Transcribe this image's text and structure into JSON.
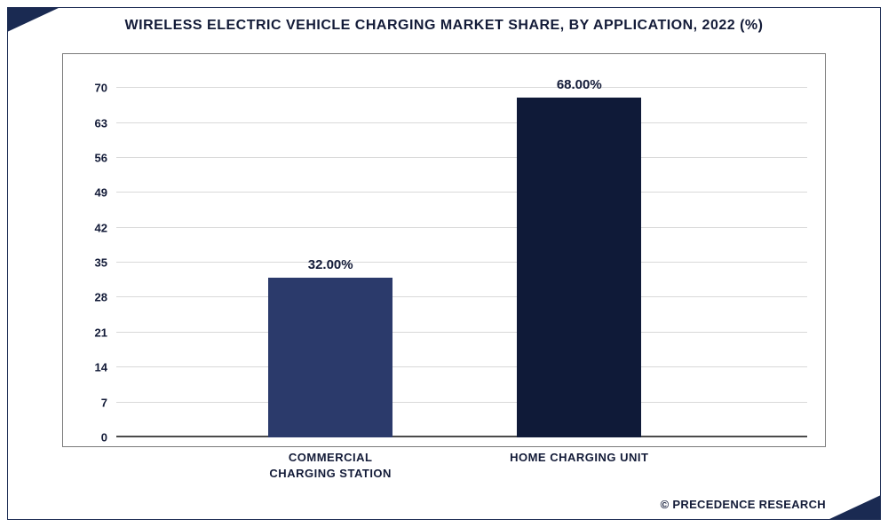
{
  "chart": {
    "type": "bar",
    "title": "WIRELESS ELECTRIC VEHICLE CHARGING MARKET SHARE, BY APPLICATION, 2022 (%)",
    "title_fontsize": 16,
    "title_color": "#131b38",
    "categories": [
      "COMMERCIAL\nCHARGING STATION",
      "HOME CHARGING UNIT"
    ],
    "values": [
      32.0,
      68.0
    ],
    "value_labels": [
      "32.00%",
      "68.00%"
    ],
    "bar_colors": [
      "#2b3a6b",
      "#0f1a38"
    ],
    "bar_width_pct": 18,
    "bar_positions_pct": [
      22,
      58
    ],
    "ylim": [
      0,
      75
    ],
    "yticks": [
      0,
      7,
      14,
      21,
      28,
      35,
      42,
      49,
      56,
      63,
      70
    ],
    "ytick_labels": [
      "0",
      "7",
      "14",
      "21",
      "28",
      "35",
      "42",
      "49",
      "56",
      "63",
      "70"
    ],
    "grid_color": "#d9d9d9",
    "axis_color": "#4a4a4a",
    "background_color": "#ffffff",
    "frame_border_color": "#1a2a52",
    "corner_accent_color": "#1a2a52",
    "axis_label_fontsize": 13,
    "bar_label_fontsize": 15,
    "xlabel_fontsize": 13
  },
  "attribution": "© PRECEDENCE RESEARCH"
}
